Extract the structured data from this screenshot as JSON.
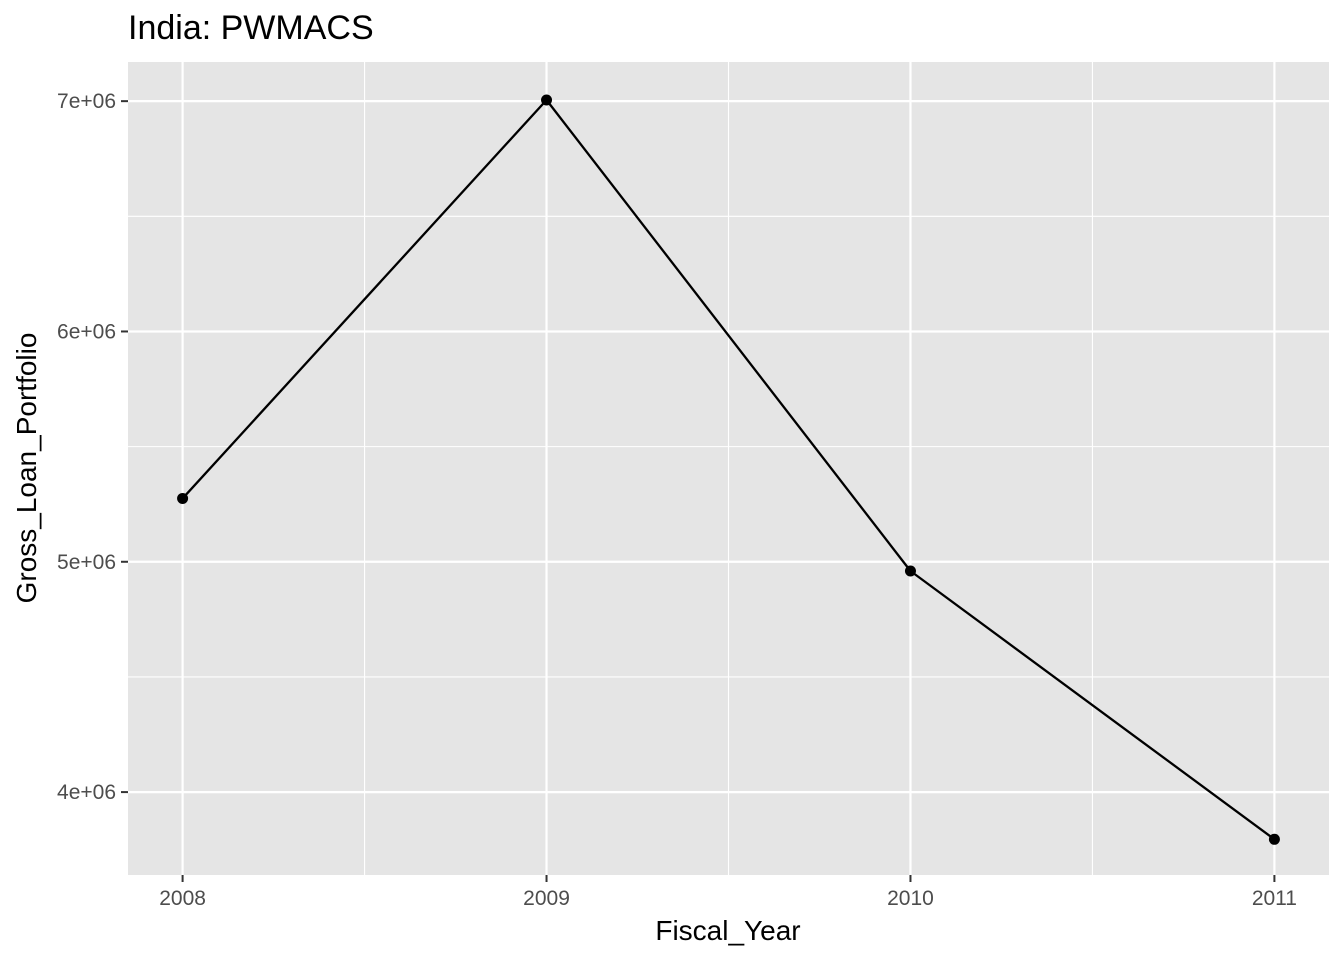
{
  "chart_data": {
    "type": "line",
    "title": "India:  PWMACS",
    "xlabel": "Fiscal_Year",
    "ylabel": "Gross_Loan_Portfolio",
    "x": [
      2008,
      2009,
      2010,
      2011
    ],
    "series": [
      {
        "values": [
          5275000,
          7005000,
          4960000,
          3795000
        ]
      }
    ],
    "xticks": [
      2008,
      2009,
      2010,
      2011
    ],
    "xtick_labels": [
      "2008",
      "2009",
      "2010",
      "2011"
    ],
    "yticks": [
      4000000,
      5000000,
      6000000,
      7000000
    ],
    "ytick_labels": [
      "4e+06",
      "5e+06",
      "6e+06",
      "7e+06"
    ],
    "xlim": [
      2007.85,
      2011.15
    ],
    "ylim": [
      3640000,
      7170000
    ],
    "grid": true,
    "colors": {
      "panel": "#e5e5e5",
      "grid": "#ffffff",
      "line": "#000000",
      "tick_text": "#4d4d4d"
    }
  }
}
